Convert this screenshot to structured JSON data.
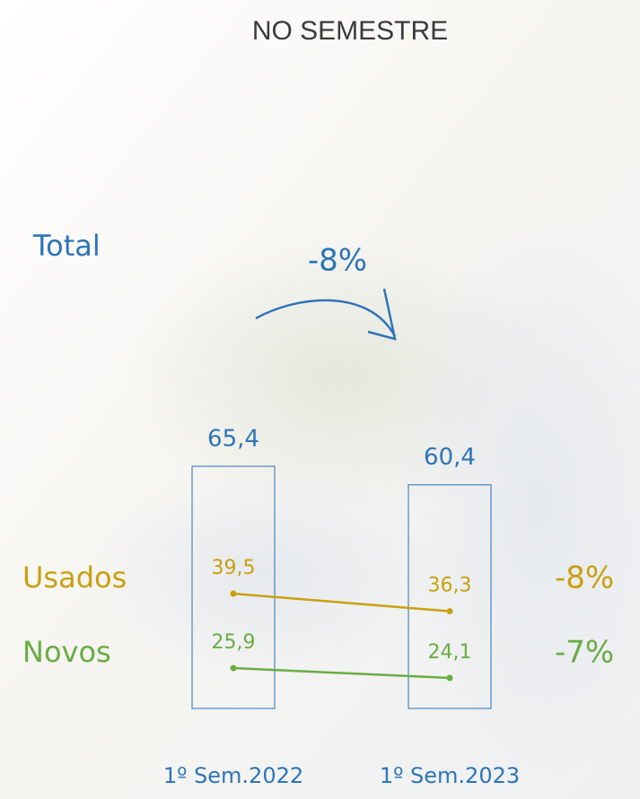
{
  "chart_data": {
    "type": "bar-line",
    "title": "NO SEMESTRE",
    "categories": [
      "1º Sem.2022",
      "1º Sem.2023"
    ],
    "ylim": [
      0,
      70
    ],
    "y2lim": [
      0,
      60
    ],
    "series": [
      {
        "name": "Total",
        "color": "#2e75b6",
        "kind": "bar",
        "values": [
          65.4,
          60.4
        ],
        "value_labels": [
          "65,4",
          "60,4"
        ],
        "change": "-8%"
      },
      {
        "name": "Usados",
        "color": "#c9a00e",
        "kind": "line",
        "axis": "y2",
        "values": [
          39.5,
          36.3
        ],
        "value_labels": [
          "39,5",
          "36,3"
        ],
        "change": "-8%"
      },
      {
        "name": "Novos",
        "color": "#6aac44",
        "kind": "line",
        "axis": "y2",
        "values": [
          25.9,
          24.1
        ],
        "value_labels": [
          "25,9",
          "24,1"
        ],
        "change": "-7%"
      }
    ]
  }
}
